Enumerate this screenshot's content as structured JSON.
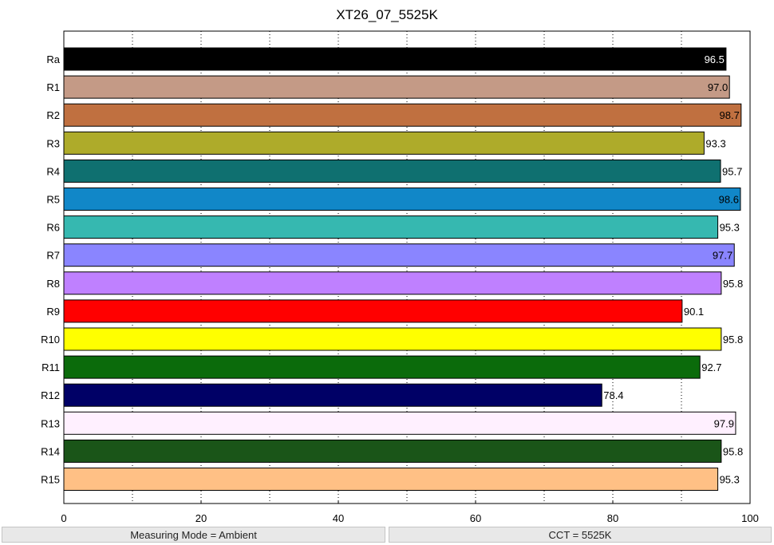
{
  "chart_data": {
    "type": "bar",
    "orientation": "horizontal",
    "title": "XT26_07_5525K",
    "xlabel": "",
    "ylabel": "",
    "xlim": [
      0,
      100
    ],
    "x_ticks": [
      0,
      20,
      40,
      60,
      80,
      100
    ],
    "x_minor_gridlines": [
      10,
      30,
      50,
      70,
      90
    ],
    "grid": "vertical dotted",
    "categories": [
      "Ra",
      "R1",
      "R2",
      "R3",
      "R4",
      "R5",
      "R6",
      "R7",
      "R8",
      "R9",
      "R10",
      "R11",
      "R12",
      "R13",
      "R14",
      "R15"
    ],
    "values": [
      96.5,
      97.0,
      98.7,
      93.3,
      95.7,
      98.6,
      95.3,
      97.7,
      95.8,
      90.1,
      95.8,
      92.7,
      78.4,
      97.9,
      95.8,
      95.3
    ],
    "value_labels": [
      "96.5",
      "97.0",
      "98.7",
      "93.3",
      "95.7",
      "98.6",
      "95.3",
      "97.7",
      "95.8",
      "90.1",
      "95.8",
      "92.7",
      "78.4",
      "97.9",
      "95.8",
      "95.3"
    ],
    "colors": [
      "#000000",
      "#c49a86",
      "#c07040",
      "#aeab2a",
      "#0f7070",
      "#1187c8",
      "#36b8b0",
      "#8a85ff",
      "#bf80ff",
      "#ff0000",
      "#ffff00",
      "#0b6b0b",
      "#000066",
      "#fff0ff",
      "#1a5518",
      "#ffc085"
    ],
    "label_colors": [
      "#ffffff",
      "#000000",
      "#000000",
      "#000000",
      "#000000",
      "#000000",
      "#000000",
      "#000000",
      "#000000",
      "#000000",
      "#000000",
      "#000000",
      "#000000",
      "#000000",
      "#000000",
      "#000000"
    ]
  },
  "status": {
    "left": "Measuring Mode = Ambient",
    "right": "CCT = 5525K"
  }
}
